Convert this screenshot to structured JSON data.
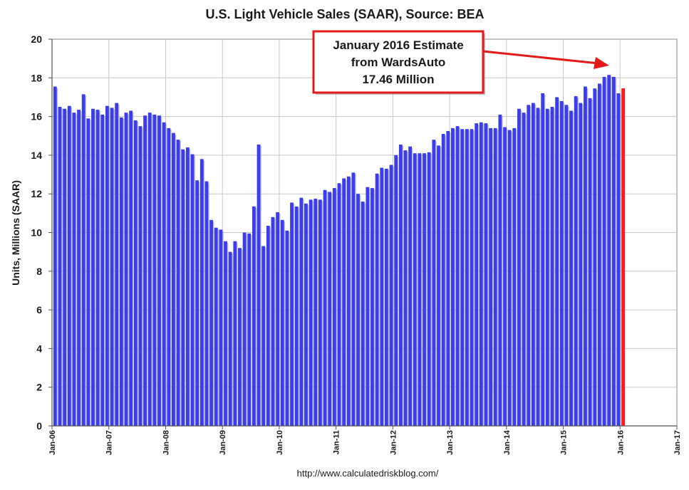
{
  "chart_data": {
    "type": "bar",
    "title": "U.S. Light Vehicle Sales (SAAR), Source: BEA",
    "ylabel": "Units, Millions (SAAR)",
    "xlabel": "",
    "source": "http://www.calculatedriskblog.com/",
    "ylim": [
      0,
      20
    ],
    "yticks": [
      0,
      2,
      4,
      6,
      8,
      10,
      12,
      14,
      16,
      18,
      20
    ],
    "grid": true,
    "x_start": "Jan-06",
    "x_ticks": [
      "Jan-06",
      "Jan-07",
      "Jan-08",
      "Jan-09",
      "Jan-10",
      "Jan-11",
      "Jan-12",
      "Jan-13",
      "Jan-14",
      "Jan-15",
      "Jan-16",
      "Jan-17"
    ],
    "series": [
      {
        "color": "#3b3bf0",
        "values": [
          17.55,
          16.5,
          16.4,
          16.55,
          16.2,
          16.35,
          17.15,
          15.9,
          16.4,
          16.35,
          16.1,
          16.55,
          16.45,
          16.7,
          15.95,
          16.2,
          16.3,
          15.8,
          15.5,
          16.05,
          16.2,
          16.1,
          16.05,
          15.7,
          15.4,
          15.15,
          14.8,
          14.3,
          14.4,
          14.05,
          12.7,
          13.8,
          12.65,
          10.65,
          10.25,
          10.15,
          9.55,
          9.0,
          9.55,
          9.2,
          10.0,
          9.95,
          11.35,
          14.55,
          9.3,
          10.35,
          10.8,
          11.05,
          10.65,
          10.1,
          11.55,
          11.35,
          11.8,
          11.5,
          11.7,
          11.75,
          11.7,
          12.2,
          12.1,
          12.3,
          12.55,
          12.8,
          12.9,
          13.1,
          12.0,
          11.6,
          12.35,
          12.3,
          13.05,
          13.35,
          13.3,
          13.5,
          14.0,
          14.55,
          14.25,
          14.45,
          14.1,
          14.1,
          14.1,
          14.15,
          14.8,
          14.5,
          15.1,
          15.25,
          15.4,
          15.5,
          15.35,
          15.35,
          15.35,
          15.65,
          15.7,
          15.65,
          15.4,
          15.4,
          16.1,
          15.45,
          15.3,
          15.4,
          16.4,
          16.2,
          16.6,
          16.7,
          16.45,
          17.2,
          16.4,
          16.5,
          17.0,
          16.8,
          16.6,
          16.3,
          17.05,
          16.7,
          17.55,
          16.95,
          17.45,
          17.7,
          18.05,
          18.15,
          18.05,
          17.2
        ]
      },
      {
        "color": "#ff1a1a",
        "values_at": [
          {
            "month": "Jan-16",
            "value": 17.46
          }
        ]
      }
    ],
    "annotation": {
      "lines": [
        "January 2016 Estimate",
        "from WardsAuto",
        "17.46 Million"
      ],
      "arrow_color": "#e21a1a",
      "box_border_color": "#e21a1a"
    }
  }
}
